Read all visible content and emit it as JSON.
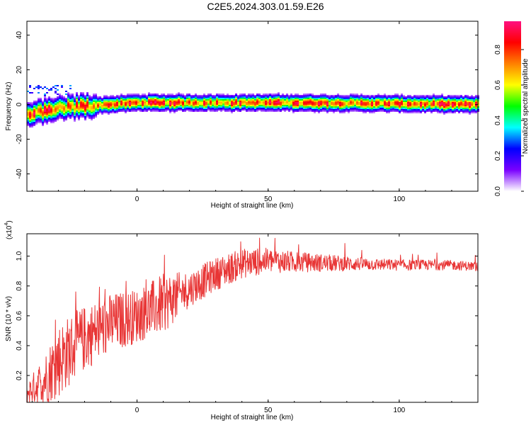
{
  "title": "C2E5.2024.303.01.59.E26",
  "chart_data": [
    {
      "type": "heatmap",
      "xlabel": "Height of straight line (km)",
      "ylabel": "Frequency (Hz)",
      "xlim": [
        -42,
        130
      ],
      "ylim": [
        -50,
        48
      ],
      "x_ticks": [
        "0",
        "50",
        "100"
      ],
      "y_ticks": [
        "40",
        "20",
        "0",
        "-20",
        "-40"
      ],
      "colorbar": {
        "label": "Normalized spectral amplitude",
        "range": [
          0.0,
          0.96
        ],
        "ticks": [
          "0.0",
          "0.2",
          "0.4",
          "0.6",
          "0.8"
        ],
        "colors": [
          "#ffffff",
          "#7a00ff",
          "#0000ff",
          "#00ffff",
          "#00ff00",
          "#ffff00",
          "#ff8000",
          "#ff0000",
          "#ff1080"
        ]
      },
      "band_center_hz": [
        {
          "x": -42,
          "y": -6
        },
        {
          "x": -35,
          "y": -4
        },
        {
          "x": -28,
          "y": -2
        },
        {
          "x": -20,
          "y": -1
        },
        {
          "x": -10,
          "y": 0
        },
        {
          "x": 0,
          "y": 1
        },
        {
          "x": 20,
          "y": 1
        },
        {
          "x": 60,
          "y": 1
        },
        {
          "x": 130,
          "y": 0
        }
      ]
    },
    {
      "type": "line",
      "xlabel": "Height of straight line (km)",
      "ylabel": "SNR (10 * v/v)",
      "y_multiplier": "(x10",
      "y_multiplier_exp": "4",
      "xlim": [
        -42,
        130
      ],
      "ylim": [
        0.02,
        1.15
      ],
      "x_ticks": [
        "0",
        "50",
        "100"
      ],
      "y_ticks": [
        "0.2",
        "0.4",
        "0.6",
        "0.8",
        "1.0"
      ],
      "color": "#e83535",
      "trend": [
        {
          "x": -42,
          "y": 0.08
        },
        {
          "x": -35,
          "y": 0.18
        },
        {
          "x": -30,
          "y": 0.3
        },
        {
          "x": -25,
          "y": 0.38
        },
        {
          "x": -20,
          "y": 0.45
        },
        {
          "x": -10,
          "y": 0.55
        },
        {
          "x": 0,
          "y": 0.6
        },
        {
          "x": 10,
          "y": 0.68
        },
        {
          "x": 20,
          "y": 0.78
        },
        {
          "x": 30,
          "y": 0.88
        },
        {
          "x": 40,
          "y": 0.95
        },
        {
          "x": 50,
          "y": 0.97
        },
        {
          "x": 60,
          "y": 0.96
        },
        {
          "x": 80,
          "y": 0.95
        },
        {
          "x": 100,
          "y": 0.94
        },
        {
          "x": 120,
          "y": 0.94
        },
        {
          "x": 130,
          "y": 0.93
        }
      ],
      "spread": [
        {
          "x": -42,
          "y": 0.07
        },
        {
          "x": -30,
          "y": 0.25
        },
        {
          "x": -20,
          "y": 0.22
        },
        {
          "x": 0,
          "y": 0.18
        },
        {
          "x": 10,
          "y": 0.2
        },
        {
          "x": 20,
          "y": 0.12
        },
        {
          "x": 40,
          "y": 0.1
        },
        {
          "x": 60,
          "y": 0.07
        },
        {
          "x": 90,
          "y": 0.04
        },
        {
          "x": 130,
          "y": 0.03
        }
      ]
    }
  ]
}
